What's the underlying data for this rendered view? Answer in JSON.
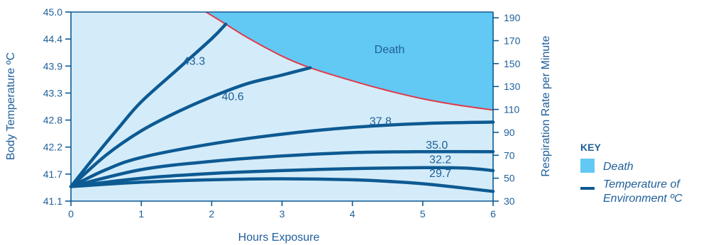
{
  "chart_data": {
    "type": "line",
    "xlabel": "Hours Exposure",
    "ylabel_left": "Body Temperature ºC",
    "ylabel_right": "Respiration Rate per Minute",
    "x_ticks": [
      0,
      1,
      2,
      3,
      4,
      5,
      6
    ],
    "xlim": [
      0,
      6
    ],
    "left_ticks": [
      "45.0",
      "44.4",
      "43.9",
      "43.3",
      "42.8",
      "42.2",
      "41.7",
      "41.1"
    ],
    "ylim_left": [
      41.1,
      45.0
    ],
    "right_ticks": [
      190,
      170,
      150,
      130,
      110,
      90,
      70,
      50,
      30
    ],
    "ylim_right": [
      30,
      195
    ],
    "grid": false,
    "region": {
      "name": "Death",
      "color": "#62c8f4",
      "boundary_color": "#e03a4a",
      "boundary": [
        [
          1.92,
          45.0
        ],
        [
          2.2,
          44.75
        ],
        [
          2.5,
          44.48
        ],
        [
          3.0,
          44.09
        ],
        [
          3.4,
          43.85
        ],
        [
          4.0,
          43.58
        ],
        [
          4.5,
          43.38
        ],
        [
          5.0,
          43.21
        ],
        [
          5.5,
          43.08
        ],
        [
          6.0,
          42.98
        ]
      ]
    },
    "series": [
      {
        "name": "43.3",
        "points": [
          [
            0,
            41.4
          ],
          [
            0.3,
            41.95
          ],
          [
            0.7,
            42.65
          ],
          [
            1.0,
            43.15
          ],
          [
            1.5,
            43.8
          ],
          [
            2.0,
            44.45
          ],
          [
            2.2,
            44.75
          ]
        ]
      },
      {
        "name": "40.6",
        "points": [
          [
            0,
            41.4
          ],
          [
            0.5,
            42.05
          ],
          [
            1.0,
            42.55
          ],
          [
            1.5,
            42.93
          ],
          [
            2.0,
            43.25
          ],
          [
            2.5,
            43.52
          ],
          [
            3.0,
            43.7
          ],
          [
            3.4,
            43.85
          ]
        ]
      },
      {
        "name": "37.8",
        "points": [
          [
            0,
            41.4
          ],
          [
            0.5,
            41.75
          ],
          [
            1.0,
            42.0
          ],
          [
            2.0,
            42.28
          ],
          [
            3.0,
            42.48
          ],
          [
            4.0,
            42.62
          ],
          [
            5.0,
            42.7
          ],
          [
            6.0,
            42.73
          ]
        ]
      },
      {
        "name": "35.0",
        "points": [
          [
            0,
            41.4
          ],
          [
            1.0,
            41.75
          ],
          [
            2.0,
            41.92
          ],
          [
            3.0,
            42.03
          ],
          [
            4.0,
            42.1
          ],
          [
            5.0,
            42.12
          ],
          [
            6.0,
            42.12
          ]
        ]
      },
      {
        "name": "32.2",
        "points": [
          [
            0,
            41.4
          ],
          [
            1.0,
            41.57
          ],
          [
            2.0,
            41.67
          ],
          [
            3.0,
            41.73
          ],
          [
            4.0,
            41.77
          ],
          [
            5.0,
            41.79
          ],
          [
            5.6,
            41.78
          ],
          [
            6.0,
            41.73
          ]
        ]
      },
      {
        "name": "29.7",
        "points": [
          [
            0,
            41.4
          ],
          [
            1.0,
            41.49
          ],
          [
            2.0,
            41.54
          ],
          [
            3.0,
            41.56
          ],
          [
            4.0,
            41.54
          ],
          [
            4.7,
            41.49
          ],
          [
            5.2,
            41.43
          ],
          [
            6.0,
            41.3
          ]
        ]
      }
    ],
    "line_color": "#0d5a93",
    "plot_background": "#d4ecf9",
    "key": {
      "title": "KEY",
      "death_label": "Death",
      "line_label_1": "Temperature of",
      "line_label_2": "Environment ºC"
    }
  }
}
